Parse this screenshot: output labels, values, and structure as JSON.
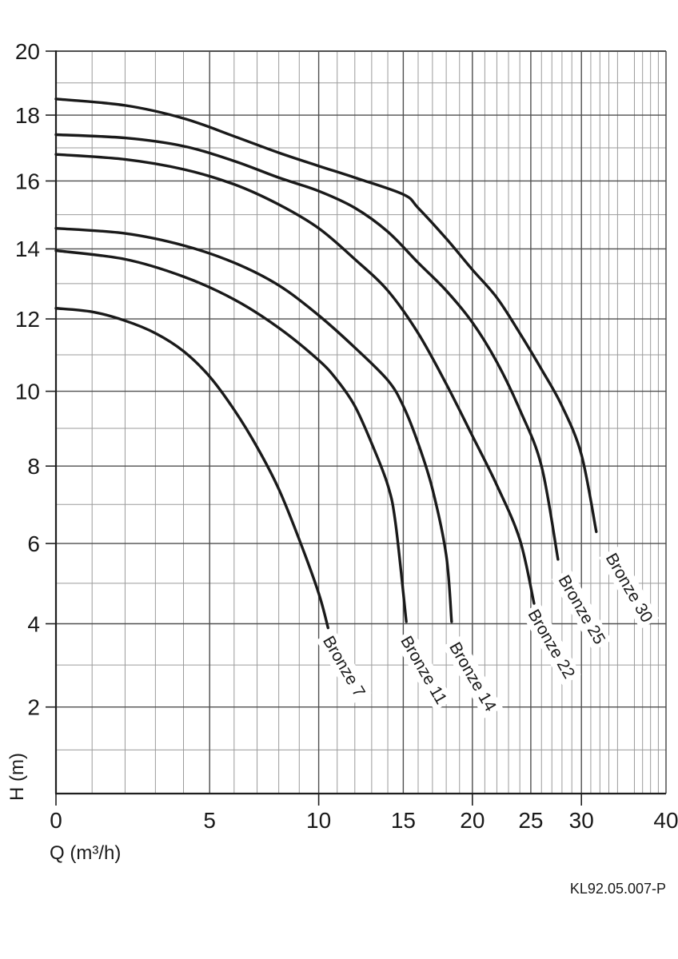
{
  "chart_data": {
    "type": "line",
    "title": "",
    "xlabel": "Q (m³/h)",
    "ylabel": "H (m)",
    "footer": "KL92.05.007-P",
    "grid": "on",
    "legend_position": "labels-on-curves",
    "x_axis": {
      "min": 0,
      "max": 40,
      "tick_labels": [
        0,
        5,
        10,
        15,
        20,
        25,
        30,
        40
      ],
      "long_ticks": [
        0,
        10,
        20,
        30
      ],
      "major_gridlines": [
        5,
        10,
        15,
        20,
        25,
        30
      ],
      "minor_step": 1,
      "scale": "shifted-log",
      "scale_offset": 10
    },
    "y_axis": {
      "min": 0,
      "max": 20,
      "tick_labels": [
        20,
        18,
        16,
        14,
        12,
        10,
        8,
        6,
        4,
        2
      ],
      "major_gridlines": [
        2,
        4,
        6,
        8,
        10,
        12,
        14,
        16,
        18
      ],
      "minor_step": 1,
      "scale": "shifted-log",
      "scale_offset": 50
    },
    "label_rotation_deg": 60,
    "series": [
      {
        "name": "Bronze 7",
        "label": {
          "q": 10.2,
          "h": 3.6
        },
        "points": [
          [
            0,
            12.3
          ],
          [
            1,
            12.2
          ],
          [
            2,
            11.95
          ],
          [
            3,
            11.6
          ],
          [
            4,
            11.1
          ],
          [
            5,
            10.4
          ],
          [
            6,
            9.5
          ],
          [
            7,
            8.5
          ],
          [
            8,
            7.4
          ],
          [
            9,
            6.1
          ],
          [
            10,
            4.75
          ],
          [
            10.5,
            3.9
          ]
        ]
      },
      {
        "name": "Bronze 11",
        "label": {
          "q": 14.8,
          "h": 3.6
        },
        "points": [
          [
            0,
            13.95
          ],
          [
            2,
            13.7
          ],
          [
            4,
            13.2
          ],
          [
            6,
            12.55
          ],
          [
            8,
            11.75
          ],
          [
            10,
            10.85
          ],
          [
            11,
            10.3
          ],
          [
            12,
            9.6
          ],
          [
            13,
            8.6
          ],
          [
            14,
            7.5
          ],
          [
            14.5,
            6.5
          ],
          [
            15.2,
            4.05
          ]
        ]
      },
      {
        "name": "Bronze 14",
        "label": {
          "q": 18.2,
          "h": 3.45
        },
        "points": [
          [
            0,
            14.6
          ],
          [
            2,
            14.45
          ],
          [
            4,
            14.1
          ],
          [
            6,
            13.6
          ],
          [
            8,
            12.95
          ],
          [
            10,
            12.1
          ],
          [
            12,
            11.2
          ],
          [
            14,
            10.3
          ],
          [
            15,
            9.6
          ],
          [
            16,
            8.6
          ],
          [
            17,
            7.4
          ],
          [
            18,
            5.7
          ],
          [
            18.4,
            4.05
          ]
        ]
      },
      {
        "name": "Bronze 22",
        "label": {
          "q": 24.7,
          "h": 4.25
        },
        "points": [
          [
            0,
            16.8
          ],
          [
            2,
            16.65
          ],
          [
            4,
            16.35
          ],
          [
            6,
            15.9
          ],
          [
            8,
            15.3
          ],
          [
            10,
            14.6
          ],
          [
            12,
            13.7
          ],
          [
            14,
            12.8
          ],
          [
            16,
            11.6
          ],
          [
            18,
            10.2
          ],
          [
            20,
            8.8
          ],
          [
            22,
            7.5
          ],
          [
            24,
            6.1
          ],
          [
            25.3,
            4.5
          ]
        ]
      },
      {
        "name": "Bronze 25",
        "label": {
          "q": 27.6,
          "h": 5.1
        },
        "points": [
          [
            0,
            17.4
          ],
          [
            2,
            17.3
          ],
          [
            4,
            17.05
          ],
          [
            6,
            16.6
          ],
          [
            8,
            16.1
          ],
          [
            10,
            15.7
          ],
          [
            12,
            15.2
          ],
          [
            14,
            14.5
          ],
          [
            16,
            13.6
          ],
          [
            18,
            12.8
          ],
          [
            20,
            11.9
          ],
          [
            22,
            10.8
          ],
          [
            24,
            9.5
          ],
          [
            26,
            8.0
          ],
          [
            27.6,
            5.6
          ]
        ]
      },
      {
        "name": "Bronze 30",
        "label": {
          "q": 32.6,
          "h": 5.65
        },
        "points": [
          [
            0,
            18.5
          ],
          [
            2,
            18.3
          ],
          [
            4,
            17.9
          ],
          [
            6,
            17.35
          ],
          [
            8,
            16.85
          ],
          [
            10,
            16.45
          ],
          [
            12,
            16.1
          ],
          [
            15,
            15.6
          ],
          [
            16,
            15.2
          ],
          [
            18,
            14.3
          ],
          [
            20,
            13.4
          ],
          [
            22,
            12.6
          ],
          [
            24,
            11.6
          ],
          [
            26,
            10.6
          ],
          [
            28,
            9.6
          ],
          [
            30,
            8.3
          ],
          [
            31.6,
            6.3
          ]
        ]
      }
    ],
    "colors": {
      "curve": "#1a1a1a",
      "grid_minor": "#9b9b9b",
      "grid_major": "#4f4f4f",
      "axis": "#1f1f1f",
      "text": "#1a1a1a",
      "background": "#ffffff",
      "label_halo": "#ffffff"
    }
  }
}
